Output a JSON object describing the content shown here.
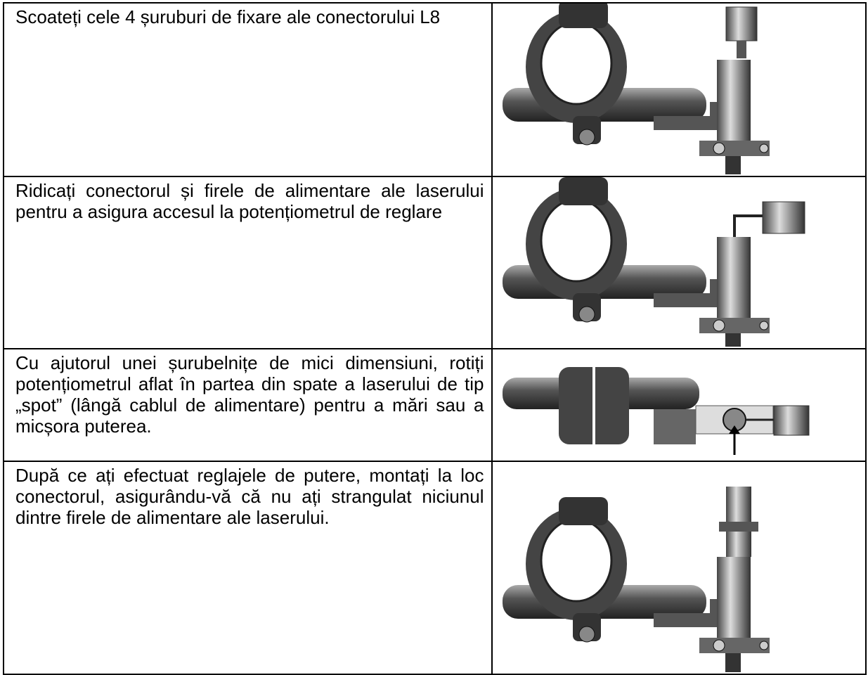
{
  "table": {
    "rows": [
      {
        "text": "Scoateți cele 4 șuruburi de fixare ale conectorului L8"
      },
      {
        "text": "Ridicați conectorul și firele de alimentare ale laserului pentru a asigura accesul la potențiometrul de reglare"
      },
      {
        "text": "Cu ajutorul unei șurubelnițe de mici dimensiuni, rotiți potențiometrul aflat în partea din spate a laserului de tip „spot” (lângă cablul de alimentare) pentru a mări sau a micșora puterea."
      },
      {
        "text": "După ce ați efectuat reglajele de putere, montați la loc conectorul, asigurându-vă că nu ați strangulat niciunul dintre firele de alimentare ale laserului."
      }
    ]
  }
}
